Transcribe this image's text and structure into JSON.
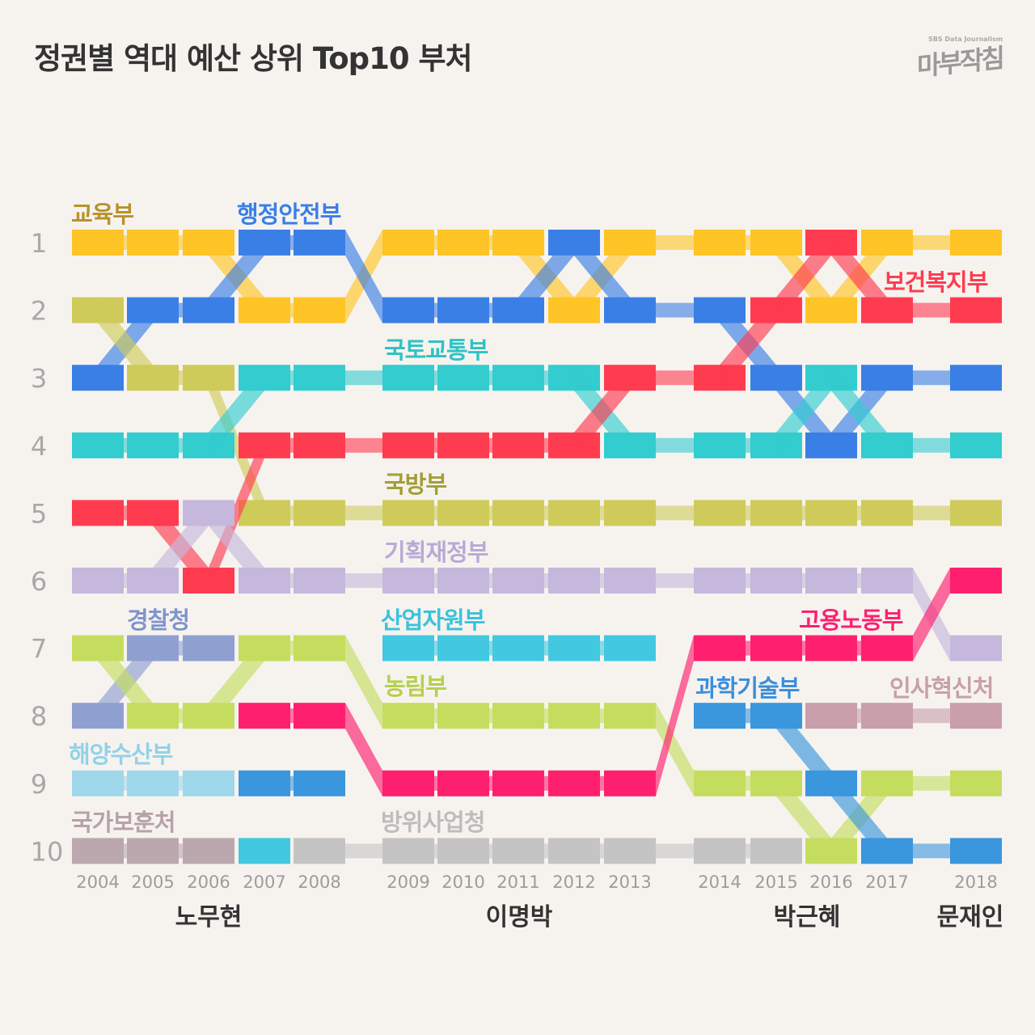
{
  "title": "정권별 역대 예산 상위 Top10 부처",
  "logo": {
    "sub": "SBS Data Journalism",
    "main": "마부작침"
  },
  "chart_data": {
    "type": "bump",
    "title": "정권별 역대 예산 상위 Top10 부처",
    "x": [
      "2004",
      "2005",
      "2006",
      "2007",
      "2008",
      "2009",
      "2010",
      "2011",
      "2012",
      "2013",
      "2014",
      "2015",
      "2016",
      "2017",
      "2018"
    ],
    "ranks": [
      "1",
      "2",
      "3",
      "4",
      "5",
      "6",
      "7",
      "8",
      "9",
      "10"
    ],
    "administrations": [
      {
        "name": "노무현",
        "years": [
          "2004",
          "2005",
          "2006",
          "2007",
          "2008"
        ]
      },
      {
        "name": "이명박",
        "years": [
          "2009",
          "2010",
          "2011",
          "2012",
          "2013"
        ]
      },
      {
        "name": "박근혜",
        "years": [
          "2014",
          "2015",
          "2016",
          "2017"
        ]
      },
      {
        "name": "문재인",
        "years": [
          "2018"
        ]
      }
    ],
    "series": [
      {
        "name": "교육부",
        "color": "#FFC425",
        "label_color": "#B8922A",
        "ranks": [
          1,
          1,
          1,
          2,
          2,
          1,
          1,
          1,
          2,
          1,
          1,
          1,
          2,
          1,
          1
        ]
      },
      {
        "name": "행정안전부",
        "color": "#3A7FE6",
        "label_color": "#3A7FE6",
        "ranks": [
          3,
          2,
          2,
          1,
          1,
          2,
          2,
          2,
          1,
          2,
          2,
          3,
          4,
          3,
          3
        ]
      },
      {
        "name": "국방부",
        "color": "#CFCB5A",
        "label_color": "#A39E35",
        "ranks": [
          2,
          3,
          3,
          5,
          5,
          5,
          5,
          5,
          5,
          5,
          5,
          5,
          5,
          5,
          5
        ]
      },
      {
        "name": "국토교통부",
        "color": "#33CCCF",
        "label_color": "#2EC2C6",
        "ranks": [
          4,
          4,
          4,
          3,
          3,
          3,
          3,
          3,
          3,
          4,
          4,
          4,
          3,
          4,
          4
        ]
      },
      {
        "name": "보건복지부",
        "color": "#FF3B50",
        "label_color": "#FF3B50",
        "ranks": [
          5,
          5,
          6,
          4,
          4,
          4,
          4,
          4,
          4,
          3,
          3,
          2,
          1,
          2,
          2
        ]
      },
      {
        "name": "기획재정부",
        "color": "#C5B8DC",
        "label_color": "#B8A9D6",
        "ranks": [
          6,
          6,
          5,
          6,
          6,
          6,
          6,
          6,
          6,
          6,
          6,
          6,
          6,
          6,
          7
        ]
      },
      {
        "name": "경찰청",
        "color": "#8FA0D0",
        "label_color": "#8094CC",
        "ranks": [
          8,
          7,
          7,
          null,
          null,
          null,
          null,
          null,
          null,
          null,
          null,
          null,
          null,
          null,
          null
        ]
      },
      {
        "name": "농림부",
        "color": "#C5DD5F",
        "label_color": "#B5D04A",
        "ranks": [
          7,
          8,
          8,
          7,
          7,
          8,
          8,
          8,
          8,
          8,
          9,
          9,
          10,
          9,
          9
        ]
      },
      {
        "name": "해양수산부",
        "color": "#9ED8EA",
        "label_color": "#93D2E8",
        "ranks": [
          9,
          9,
          9,
          null,
          null,
          null,
          null,
          null,
          null,
          null,
          null,
          null,
          null,
          null,
          null
        ]
      },
      {
        "name": "과학기술부",
        "color": "#3A96DD",
        "label_color": "#3A8EDB",
        "ranks": [
          null,
          null,
          null,
          9,
          9,
          null,
          null,
          null,
          null,
          null,
          8,
          8,
          9,
          10,
          10
        ]
      },
      {
        "name": "산업자원부",
        "color": "#42C8E0",
        "label_color": "#3AC2DD",
        "ranks": [
          null,
          null,
          null,
          10,
          null,
          7,
          7,
          7,
          7,
          7,
          null,
          null,
          null,
          null,
          null
        ]
      },
      {
        "name": "국가보훈처",
        "color": "#BBA8AE",
        "label_color": "#B7A2A9",
        "ranks": [
          10,
          10,
          10,
          null,
          null,
          null,
          null,
          null,
          null,
          null,
          null,
          null,
          null,
          null,
          null
        ]
      },
      {
        "name": "방위사업청",
        "color": "#C4C4C4",
        "label_color": "#BDBDBD",
        "ranks": [
          null,
          null,
          null,
          null,
          10,
          10,
          10,
          10,
          10,
          10,
          10,
          10,
          null,
          null,
          null
        ]
      },
      {
        "name": "고용노동부",
        "color": "#FF1F6F",
        "label_color": "#FF1F6F",
        "ranks": [
          null,
          null,
          null,
          8,
          8,
          9,
          9,
          9,
          9,
          9,
          7,
          7,
          7,
          7,
          6
        ]
      },
      {
        "name": "인사혁신처",
        "color": "#C89FAA",
        "label_color": "#C89FAA",
        "ranks": [
          null,
          null,
          null,
          null,
          null,
          null,
          null,
          null,
          null,
          null,
          null,
          null,
          8,
          8,
          8
        ]
      }
    ]
  }
}
